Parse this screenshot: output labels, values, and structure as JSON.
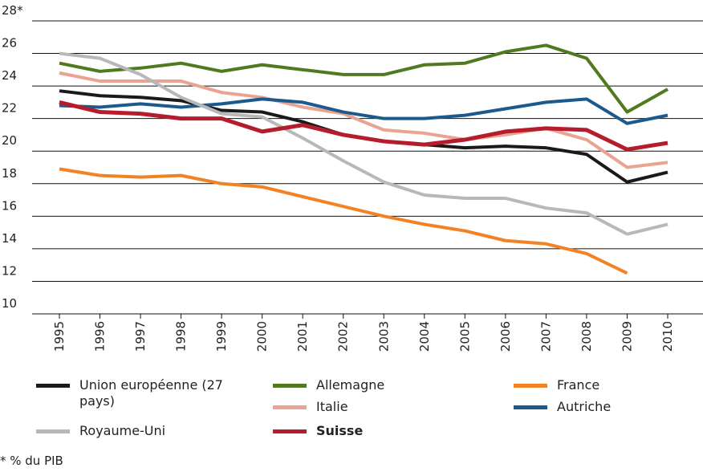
{
  "chart_data": {
    "type": "line",
    "categories": [
      "1995",
      "1996",
      "1997",
      "1998",
      "1999",
      "2000",
      "2001",
      "2002",
      "2003",
      "2004",
      "2005",
      "2006",
      "2007",
      "2008",
      "2009",
      "2010"
    ],
    "ylim": [
      10,
      28
    ],
    "yticks": [
      10,
      12,
      14,
      16,
      18,
      20,
      22,
      24,
      26,
      {
        "value": 28,
        "label": "28*"
      }
    ],
    "grid": true,
    "series": [
      {
        "name": "Union européenne (27 pays)",
        "color": "#1a1a1a",
        "values": [
          23.7,
          23.4,
          23.3,
          23.1,
          22.5,
          22.4,
          21.8,
          21.0,
          20.6,
          20.4,
          20.2,
          20.3,
          20.2,
          19.8,
          18.1,
          18.7
        ]
      },
      {
        "name": "Allemagne",
        "color": "#4f7a1f",
        "values": [
          25.4,
          24.9,
          25.1,
          25.4,
          24.9,
          25.3,
          25.0,
          24.7,
          24.7,
          25.3,
          25.4,
          26.1,
          26.5,
          25.7,
          22.4,
          23.8
        ]
      },
      {
        "name": "France",
        "color": "#f28226",
        "values": [
          18.9,
          18.5,
          18.4,
          18.5,
          18.0,
          17.8,
          17.2,
          16.6,
          16.0,
          15.5,
          15.1,
          14.5,
          14.3,
          13.7,
          12.5,
          null
        ]
      },
      {
        "name": "Italie",
        "color": "#e9a491",
        "values": [
          24.8,
          24.3,
          24.3,
          24.3,
          23.6,
          23.3,
          22.7,
          22.3,
          21.3,
          21.1,
          20.7,
          21.0,
          21.4,
          20.7,
          19.0,
          19.3
        ]
      },
      {
        "name": "Autriche",
        "color": "#1c5a8e",
        "values": [
          22.8,
          22.7,
          22.9,
          22.7,
          22.9,
          23.2,
          23.0,
          22.4,
          22.0,
          22.0,
          22.2,
          22.6,
          23.0,
          23.2,
          21.7,
          22.2
        ]
      },
      {
        "name": "Royaume-Uni",
        "color": "#b8b8b8",
        "values": [
          26.0,
          25.7,
          24.7,
          23.3,
          22.3,
          22.1,
          20.8,
          19.4,
          18.1,
          17.3,
          17.1,
          17.1,
          16.5,
          16.2,
          14.9,
          15.5
        ]
      },
      {
        "name": "Suisse",
        "color": "#b51c2c",
        "bold": true,
        "values": [
          23.0,
          22.4,
          22.3,
          22.0,
          22.0,
          21.2,
          21.6,
          21.0,
          20.6,
          20.4,
          20.7,
          21.2,
          21.4,
          21.3,
          20.1,
          20.5
        ]
      }
    ],
    "footnote": "* % du PIB"
  }
}
